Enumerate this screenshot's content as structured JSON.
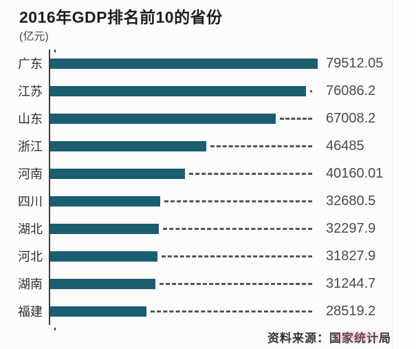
{
  "title": "2016年GDP排名前10的省份",
  "unit_label": "(亿元)",
  "source": "资料来源：国家统计局",
  "colors": {
    "bar": "#1a5e70",
    "axis": "#3c3c3c",
    "leader_line": "#555555",
    "title_text": "#1c1c1c",
    "value_text": "#4a4a4a",
    "category_text": "#2e2e2e"
  },
  "chart_data": {
    "type": "bar",
    "orientation": "horizontal",
    "title": "2016年GDP排名前10的省份",
    "unit": "亿元",
    "categories": [
      "广东",
      "江苏",
      "山东",
      "浙江",
      "河南",
      "四川",
      "湖北",
      "河北",
      "湖南",
      "福建"
    ],
    "values": [
      79512.05,
      76086.2,
      67008.2,
      46485,
      40160.01,
      32680.5,
      32297.9,
      31827.9,
      31244.7,
      28519.2
    ],
    "value_labels": [
      "79512.05",
      "76086.2",
      "67008.2",
      "46485",
      "40160.01",
      "32680.5",
      "32297.9",
      "31827.9",
      "31244.7",
      "28519.2"
    ],
    "xlim": [
      0,
      79512.05
    ],
    "grid": false,
    "legend": false,
    "bar_color": "#1a5e70",
    "source": "资料来源：国家统计局"
  }
}
